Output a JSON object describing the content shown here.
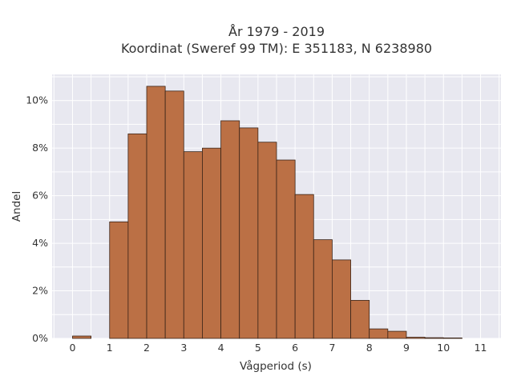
{
  "chart_data": {
    "type": "bar",
    "title_lines": [
      "År 1979 - 2019",
      "Koordinat (Sweref 99 TM): E 351183, N 6238980"
    ],
    "xlabel": "Vågperiod (s)",
    "ylabel": "Andel",
    "bin_width": 0.5,
    "bin_starts": [
      0,
      0.5,
      1,
      1.5,
      2,
      2.5,
      3,
      3.5,
      4,
      4.5,
      5,
      5.5,
      6,
      6.5,
      7,
      7.5,
      8,
      8.5,
      9,
      9.5,
      10,
      10.5
    ],
    "values": [
      0.1,
      0,
      4.9,
      8.6,
      10.6,
      10.4,
      7.85,
      8.0,
      9.15,
      8.85,
      8.25,
      7.5,
      6.05,
      4.15,
      3.3,
      1.6,
      0.4,
      0.3,
      0.05,
      0.03,
      0.02,
      0
    ],
    "xlim": [
      -0.55,
      11.55
    ],
    "ylim": [
      0,
      11.1
    ],
    "x_ticks": [
      0,
      1,
      2,
      3,
      4,
      5,
      6,
      7,
      8,
      9,
      10,
      11
    ],
    "x_tick_labels": [
      "0",
      "1",
      "2",
      "3",
      "4",
      "5",
      "6",
      "7",
      "8",
      "9",
      "10",
      "11"
    ],
    "y_ticks": [
      0,
      2,
      4,
      6,
      8,
      10
    ],
    "y_tick_labels": [
      "0%",
      "2%",
      "4%",
      "6%",
      "8%",
      "10%"
    ],
    "grid": true,
    "colors": {
      "bar_fill": "#bb7045",
      "bar_stroke": "#3a2418",
      "plot_bg": "#e8e8f0",
      "grid": "#ffffff",
      "text": "#333333"
    }
  }
}
